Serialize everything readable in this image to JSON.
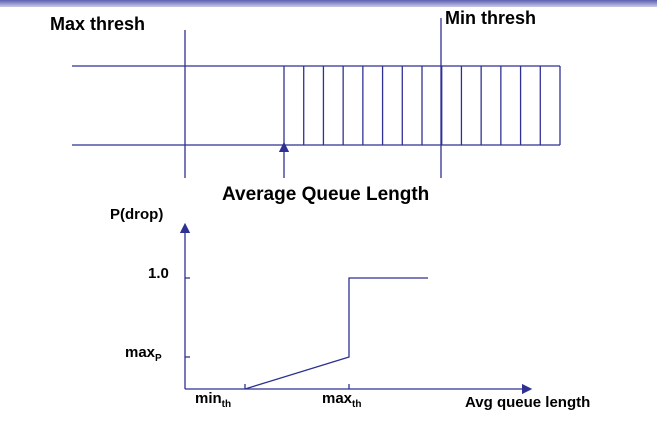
{
  "labels": {
    "max_thresh": "Max thresh",
    "min_thresh": "Min thresh",
    "average_queue_length": "Average Queue Length",
    "p_drop": "P(drop)",
    "one": "1.0",
    "maxp_main": "max",
    "maxp_sub": "P",
    "minth_main": "min",
    "minth_sub": "th",
    "maxth_main": "max",
    "maxth_sub": "th",
    "avg_queue_length": "Avg queue length"
  },
  "queue": {
    "filled_slots": 14
  },
  "graph": {
    "y_ticks": [
      "1.0",
      "maxP"
    ],
    "x_ticks": [
      "minth",
      "maxth"
    ]
  },
  "colors": {
    "line": "#2e3192",
    "text": "#000000",
    "top_bar": "#5b5fb0"
  }
}
